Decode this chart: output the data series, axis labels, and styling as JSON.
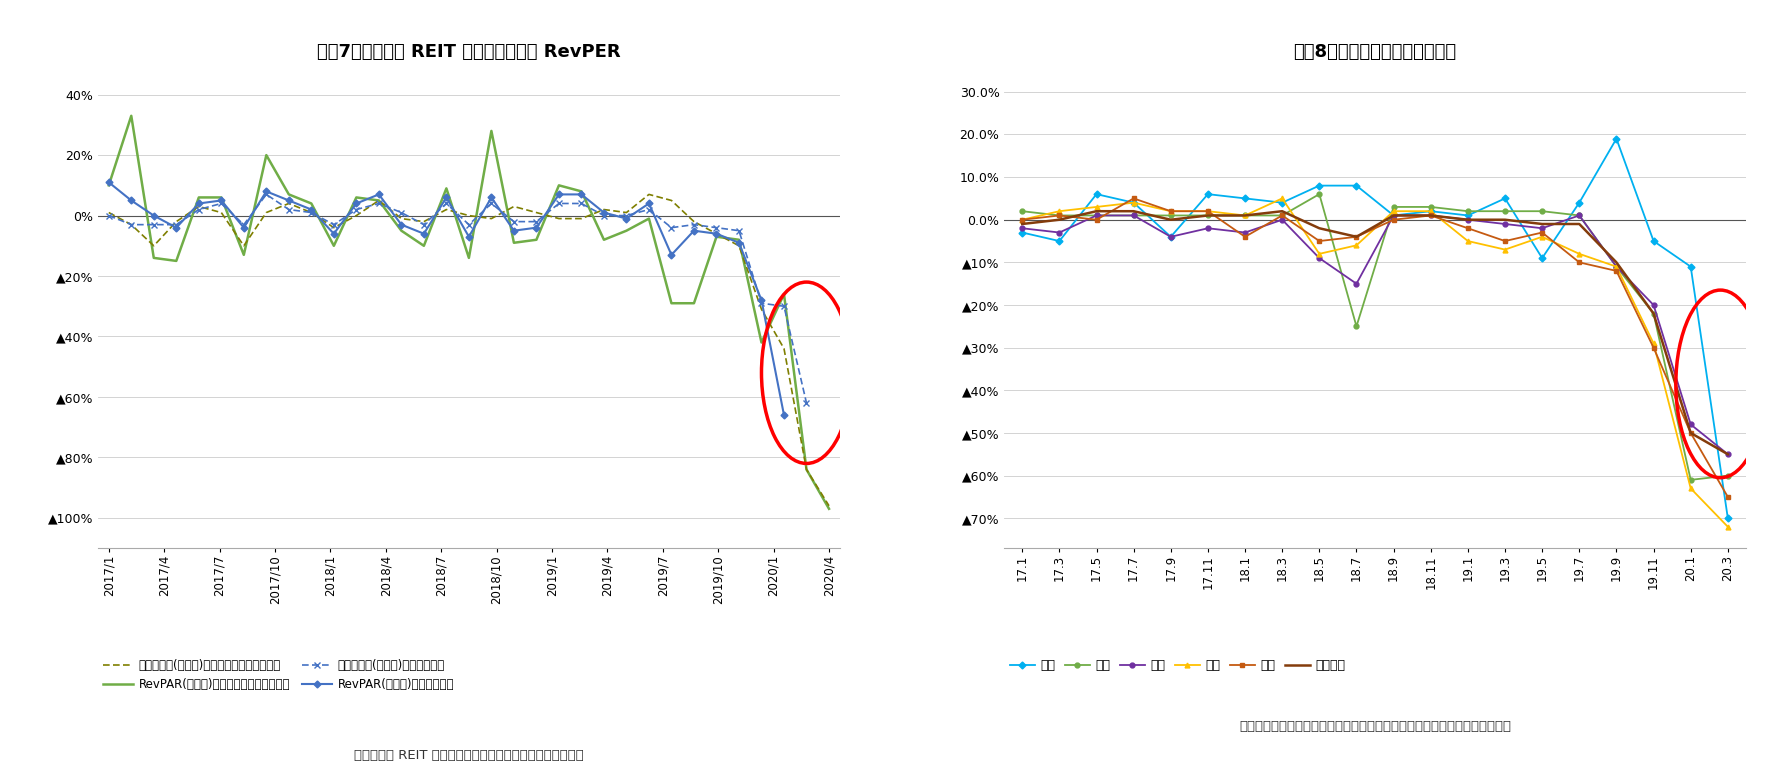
{
  "fig7_title": "図表7　ホテル系 REIT の客室稼働率と RevPER",
  "fig8_title": "図表8　全国各都市の客室稼働率",
  "fig7_caption": "（資料）各 REIT の公表資料からニッセイ基礎研究所が作成",
  "fig8_caption": "（資料）オータパブリケイションの公表資料からニッセイ基礎研究所が作成",
  "fig7_yticks": [
    0.4,
    0.2,
    0.0,
    -0.2,
    -0.4,
    -0.6,
    -0.8,
    -1.0
  ],
  "fig7_yticklabels": [
    "40%",
    "20%",
    "0%",
    "▲20%",
    "▲40%",
    "▲60%",
    "▲80%",
    "▲100%"
  ],
  "fig7_ylim": [
    -1.1,
    0.48
  ],
  "fig8_yticks": [
    0.3,
    0.2,
    0.1,
    0.0,
    -0.1,
    -0.2,
    -0.3,
    -0.4,
    -0.5,
    -0.6,
    -0.7
  ],
  "fig8_yticklabels": [
    "30.0%",
    "20.0%",
    "10.0%",
    "0.0%",
    "▲10%",
    "▲20%",
    "▲30%",
    "▲40%",
    "▲50%",
    "▲60%",
    "▲70%"
  ],
  "fig8_ylim": [
    -0.77,
    0.35
  ],
  "fig7_xticks": [
    "2017/1",
    "2017/4",
    "2017/7",
    "2017/10",
    "2018/1",
    "2018/4",
    "2018/7",
    "2018/10",
    "2019/1",
    "2019/4",
    "2019/7",
    "2019/10",
    "2020/1",
    "2020/4"
  ],
  "fig8_xticks": [
    "17.1",
    "17.3",
    "17.5",
    "17.7",
    "17.9",
    "17.11",
    "18.1",
    "18.3",
    "18.5",
    "18.7",
    "18.9",
    "18.11",
    "19.1",
    "19.3",
    "19.5",
    "19.7",
    "19.9",
    "19.11",
    "20.1",
    "20.3"
  ],
  "invincible_occ": [
    0.01,
    -0.03,
    -0.1,
    -0.02,
    0.03,
    0.01,
    -0.1,
    0.01,
    0.04,
    0.01,
    -0.04,
    0.0,
    0.05,
    -0.01,
    -0.02,
    0.02,
    0.0,
    -0.01,
    0.03,
    0.01,
    -0.01,
    -0.01,
    0.02,
    0.01,
    0.07,
    0.05,
    -0.02,
    -0.06,
    -0.1,
    -0.31,
    -0.44,
    -0.84,
    -0.96
  ],
  "invincible_revpar": [
    0.1,
    0.33,
    -0.14,
    -0.15,
    0.06,
    0.06,
    -0.13,
    0.2,
    0.07,
    0.04,
    -0.1,
    0.06,
    0.05,
    -0.05,
    -0.1,
    0.09,
    -0.14,
    0.28,
    -0.09,
    -0.08,
    0.1,
    0.08,
    -0.08,
    -0.05,
    -0.01,
    -0.29,
    -0.29,
    -0.07,
    -0.08,
    -0.42,
    -0.26,
    -0.84,
    -0.97
  ],
  "ichigo_occ": [
    0.0,
    -0.03,
    -0.03,
    -0.03,
    0.02,
    0.04,
    -0.03,
    0.07,
    0.02,
    0.01,
    -0.03,
    0.02,
    0.04,
    0.01,
    -0.03,
    0.04,
    -0.03,
    0.04,
    -0.02,
    -0.02,
    0.04,
    0.04,
    0.0,
    0.0,
    0.02,
    -0.04,
    -0.03,
    -0.04,
    -0.05,
    -0.29,
    -0.3,
    -0.62,
    null
  ],
  "ichigo_revpar": [
    0.11,
    0.05,
    0.0,
    -0.04,
    0.04,
    0.05,
    -0.04,
    0.08,
    0.05,
    0.02,
    -0.06,
    0.04,
    0.07,
    -0.03,
    -0.06,
    0.06,
    -0.07,
    0.06,
    -0.05,
    -0.04,
    0.07,
    0.07,
    0.01,
    -0.01,
    0.04,
    -0.13,
    -0.05,
    -0.06,
    -0.09,
    -0.28,
    -0.66,
    null,
    null
  ],
  "fig7_n": 33,
  "fig8_n": 20,
  "sapporo": [
    -0.03,
    -0.05,
    0.06,
    0.04,
    -0.04,
    0.06,
    0.05,
    0.04,
    0.08,
    0.08,
    0.01,
    0.02,
    0.01,
    0.05,
    -0.09,
    0.04,
    0.19,
    -0.05,
    -0.11,
    -0.7
  ],
  "tokyo": [
    0.02,
    0.01,
    0.01,
    0.01,
    0.01,
    0.01,
    0.01,
    0.01,
    0.06,
    -0.25,
    0.03,
    0.03,
    0.02,
    0.02,
    0.02,
    0.01,
    -0.11,
    -0.22,
    -0.61,
    -0.6
  ],
  "kyoto": [
    -0.02,
    -0.03,
    0.01,
    0.01,
    -0.04,
    -0.02,
    -0.03,
    0.0,
    -0.09,
    -0.15,
    0.01,
    0.01,
    0.0,
    -0.01,
    -0.02,
    0.01,
    -0.11,
    -0.2,
    -0.48,
    -0.55
  ],
  "osaka": [
    0.0,
    0.02,
    0.03,
    0.04,
    0.02,
    0.02,
    0.01,
    0.05,
    -0.08,
    -0.06,
    0.02,
    0.02,
    -0.05,
    -0.07,
    -0.04,
    -0.08,
    -0.11,
    -0.29,
    -0.63,
    -0.72
  ],
  "okinawa": [
    0.0,
    0.01,
    0.0,
    0.05,
    0.02,
    0.02,
    -0.04,
    0.01,
    -0.05,
    -0.04,
    0.0,
    0.01,
    -0.02,
    -0.05,
    -0.03,
    -0.1,
    -0.12,
    -0.3,
    -0.5,
    -0.65
  ],
  "national": [
    -0.01,
    0.0,
    0.02,
    0.02,
    0.0,
    0.01,
    0.01,
    0.02,
    -0.02,
    -0.04,
    0.01,
    0.01,
    0.0,
    0.0,
    -0.01,
    -0.01,
    -0.1,
    -0.22,
    -0.5,
    -0.55
  ],
  "colors": {
    "invincible_occ": "#7f7f00",
    "invincible_revpar": "#70ad47",
    "ichigo_occ": "#4472c4",
    "ichigo_revpar": "#4472c4",
    "sapporo": "#00b0f0",
    "tokyo": "#70ad47",
    "kyoto": "#7030a0",
    "osaka": "#ffc000",
    "okinawa": "#c55a11",
    "national": "#843c0c"
  },
  "background_color": "#ffffff",
  "legend7_labels": [
    "客室稼働率(前年比)",
    "（インヴィンジブル）",
    "RevPAR(前年比)",
    "（インヴィンジブル）",
    "客室稼働率(前年比)",
    "（いちご）",
    "RevPAR(前年比)",
    "（いちご）"
  ],
  "legend8_labels": [
    "札幌",
    "東京",
    "京都",
    "大阪",
    "沖縄",
    "全国平均"
  ]
}
